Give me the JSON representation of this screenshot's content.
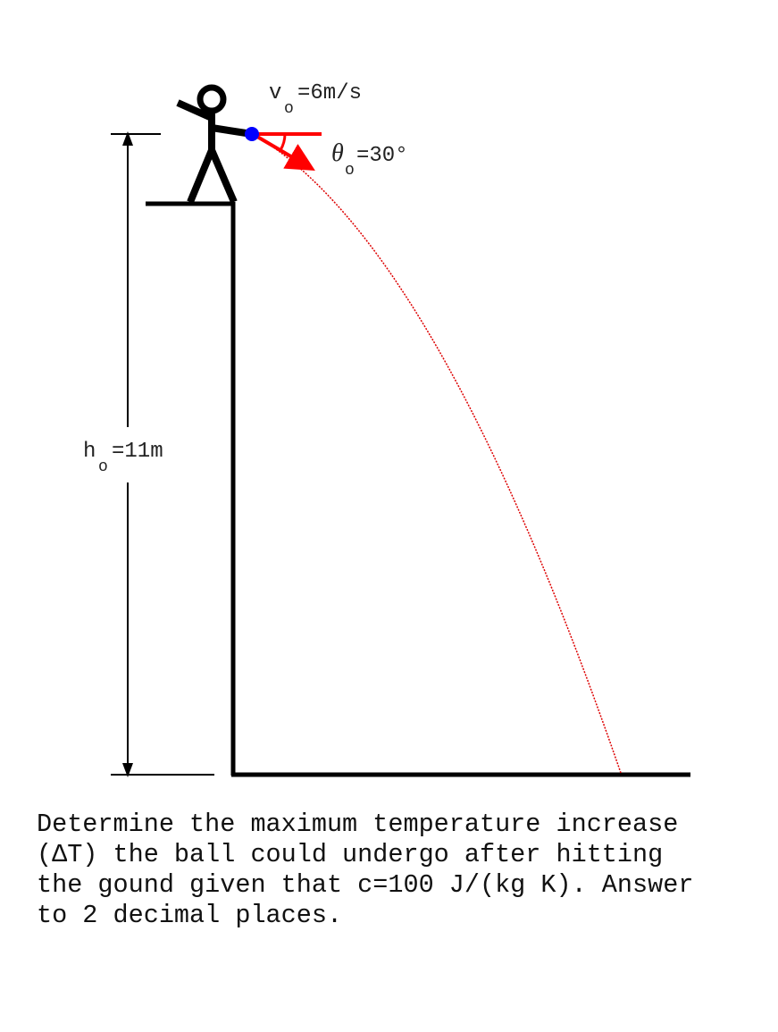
{
  "labels": {
    "velocity_symbol": "v",
    "velocity_subscript": "o",
    "velocity_value": "=6m/s",
    "angle_symbol": "θ",
    "angle_subscript": "o",
    "angle_value": "=30°",
    "height_symbol": "h",
    "height_subscript": "o",
    "height_value": "=11m"
  },
  "question": "Determine the maximum temperature increase\n(ΔT) the ball could undergo after hitting\nthe gound given that c=100 J/(kg K). Answer\nto 2 decimal places.",
  "colors": {
    "ball": "#0000ff",
    "velocity_vector": "#ff0000",
    "trajectory": "#dd0000",
    "structure": "#000000"
  }
}
